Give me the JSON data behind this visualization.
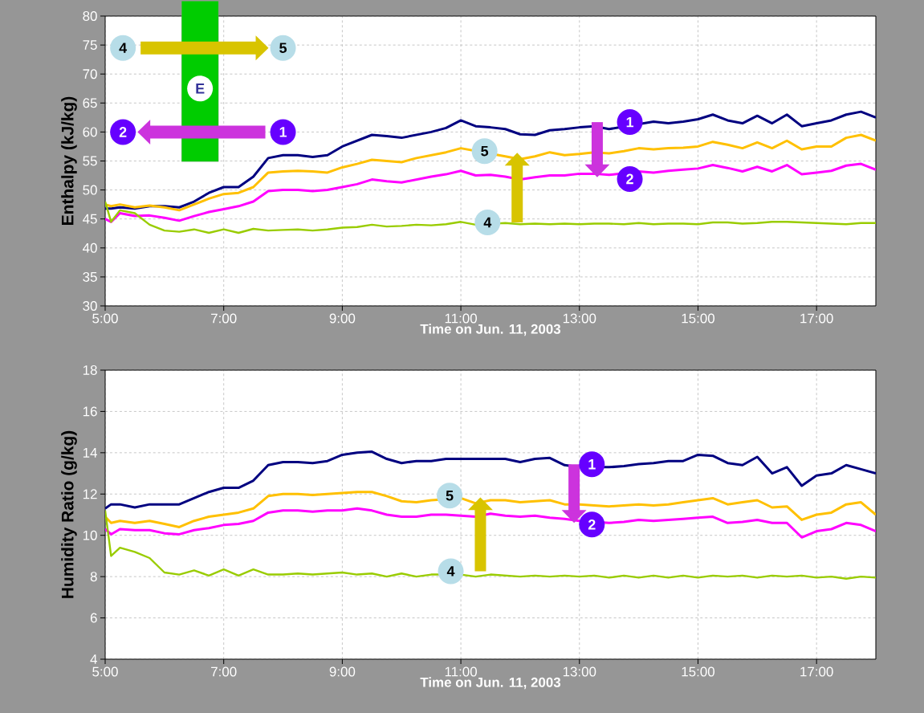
{
  "chart_data": [
    {
      "type": "line",
      "ylabel": "Enthalpy (kJ/kg)",
      "xlabel": "Time on Jun. 11, 2003",
      "x": [
        5,
        5.1,
        5.25,
        5.5,
        5.75,
        6,
        6.25,
        6.5,
        6.75,
        7,
        7.25,
        7.5,
        7.75,
        8,
        8.25,
        8.5,
        8.75,
        9,
        9.25,
        9.5,
        9.75,
        10,
        10.25,
        10.5,
        10.75,
        11,
        11.25,
        11.5,
        11.75,
        12,
        12.25,
        12.5,
        12.75,
        13,
        13.25,
        13.5,
        13.75,
        14,
        14.25,
        14.5,
        14.75,
        15,
        15.25,
        15.5,
        15.75,
        16,
        16.25,
        16.5,
        16.75,
        17,
        17.25,
        17.5,
        17.75,
        18
      ],
      "series": [
        {
          "color": "#000080",
          "values": [
            46.8,
            46.8,
            47,
            46.8,
            47.2,
            47.2,
            47.0,
            48,
            49.5,
            50.5,
            50.5,
            52.3,
            55.5,
            56,
            56,
            55.7,
            56,
            57.5,
            58.5,
            59.5,
            59.3,
            59,
            59.5,
            60,
            60.7,
            62,
            61,
            60.8,
            60.5,
            59.6,
            59.5,
            60.3,
            60.5,
            60.8,
            61,
            60.5,
            null,
            null,
            61.8,
            61.5,
            61.8,
            62.2,
            63,
            62,
            61.5,
            62.8,
            61.5,
            63,
            61,
            61.5,
            62,
            63,
            63.5,
            62.5
          ]
        },
        {
          "color": "#ffc000",
          "values": [
            47.5,
            47.2,
            47.5,
            47,
            47.3,
            47,
            46.5,
            47.5,
            48.5,
            49.3,
            49.5,
            50.5,
            53,
            53.2,
            53.3,
            53.2,
            53,
            53.9,
            54.5,
            55.2,
            55,
            54.8,
            55.5,
            56,
            56.5,
            57.2,
            null,
            null,
            55.8,
            55.3,
            55.8,
            56.5,
            56,
            56.2,
            56.5,
            56.3,
            56.7,
            57.2,
            57,
            57.2,
            57.3,
            57.5,
            58.3,
            57.8,
            57.2,
            58.2,
            57.2,
            58.5,
            57,
            57.5,
            57.5,
            59,
            59.5,
            58.5
          ]
        },
        {
          "color": "#ff00ff",
          "values": [
            45,
            44.5,
            46,
            45.5,
            45.6,
            45.2,
            44.7,
            45.5,
            46.2,
            46.7,
            47.2,
            48,
            49.8,
            50,
            50,
            49.8,
            50,
            50.5,
            51,
            51.8,
            51.5,
            51.3,
            51.8,
            52.3,
            52.7,
            53.3,
            52.5,
            52.6,
            52.3,
            51.8,
            52.2,
            52.5,
            52.5,
            52.8,
            52.8,
            52.6,
            null,
            53.2,
            53,
            53.3,
            53.5,
            53.7,
            54.3,
            53.8,
            53.2,
            54,
            53.2,
            54.3,
            52.7,
            53,
            53.3,
            54.2,
            54.5,
            53.5
          ]
        },
        {
          "color": "#99cc00",
          "values": [
            48,
            44.5,
            46.5,
            46,
            44,
            43,
            42.8,
            43.2,
            42.6,
            43.2,
            42.6,
            43.3,
            43,
            43.1,
            43.2,
            43,
            43.2,
            43.5,
            43.6,
            44,
            43.7,
            43.8,
            44,
            43.9,
            44.1,
            44.5,
            44,
            null,
            44.3,
            44.1,
            44.2,
            44.1,
            44.2,
            44.1,
            44.2,
            44.2,
            44.1,
            44.3,
            44.1,
            44.2,
            44.2,
            44.1,
            44.4,
            44.4,
            44.2,
            44.3,
            44.5,
            44.5,
            44.4,
            44.3,
            44.2,
            44.1,
            44.3,
            44.3
          ]
        }
      ],
      "xlim": [
        5,
        18
      ],
      "xticks": [
        {
          "value": 5,
          "label": "5:00"
        },
        {
          "value": 7,
          "label": "7:00"
        },
        {
          "value": 9,
          "label": "9:00"
        },
        {
          "value": 11,
          "label": "11:00"
        },
        {
          "value": 13,
          "label": "13:00"
        },
        {
          "value": 15,
          "label": "15:00"
        },
        {
          "value": 17,
          "label": "17:00"
        }
      ],
      "ylim": [
        30,
        80
      ],
      "yticks": [
        30,
        35,
        40,
        45,
        50,
        55,
        60,
        65,
        70,
        75,
        80
      ],
      "grid": true,
      "annotations": [
        {
          "text": "4",
          "x": 5.3,
          "y": 74.5
        },
        {
          "text": "5",
          "x": 8.0,
          "y": 74.5
        },
        {
          "text": "E",
          "x": 6.6,
          "y": 67.5
        },
        {
          "text": "2",
          "x": 5.3,
          "y": 60
        },
        {
          "text": "1",
          "x": 8.0,
          "y": 60
        },
        {
          "text": "5",
          "x": 11.4,
          "y": 56.7
        },
        {
          "text": "4",
          "x": 11.45,
          "y": 44.4
        },
        {
          "text": "1",
          "x": 13.85,
          "y": 61.7
        },
        {
          "text": "2",
          "x": 13.85,
          "y": 51.9
        }
      ]
    },
    {
      "type": "line",
      "ylabel": "Humidity Ratio (g/kg)",
      "xlabel": "Time on Jun. 11, 2003",
      "x": [
        5,
        5.1,
        5.25,
        5.5,
        5.75,
        6,
        6.25,
        6.5,
        6.75,
        7,
        7.25,
        7.5,
        7.75,
        8,
        8.25,
        8.5,
        8.75,
        9,
        9.25,
        9.5,
        9.75,
        10,
        10.25,
        10.5,
        10.75,
        11,
        11.25,
        11.5,
        11.75,
        12,
        12.25,
        12.5,
        12.75,
        13,
        13.25,
        13.5,
        13.75,
        14,
        14.25,
        14.5,
        14.75,
        15,
        15.25,
        15.5,
        15.75,
        16,
        16.25,
        16.5,
        16.75,
        17,
        17.25,
        17.5,
        17.75,
        18
      ],
      "series": [
        {
          "color": "#000080",
          "values": [
            11.3,
            11.5,
            11.5,
            11.35,
            11.5,
            11.5,
            11.5,
            11.8,
            12.1,
            12.3,
            12.3,
            12.65,
            13.4,
            13.55,
            13.55,
            13.5,
            13.6,
            13.9,
            14.0,
            14.05,
            13.7,
            13.5,
            13.6,
            13.6,
            13.7,
            13.7,
            13.7,
            13.7,
            13.7,
            13.55,
            13.7,
            13.75,
            13.4,
            13.3,
            null,
            13.3,
            13.35,
            13.45,
            13.5,
            13.6,
            13.6,
            13.9,
            13.85,
            13.5,
            13.4,
            13.8,
            13.0,
            13.3,
            12.4,
            12.9,
            13.0,
            13.4,
            13.2,
            13.0
          ]
        },
        {
          "color": "#ffc000",
          "values": [
            10.9,
            10.6,
            10.7,
            10.6,
            10.7,
            10.55,
            10.4,
            10.7,
            10.9,
            11.0,
            11.1,
            11.3,
            11.9,
            12.0,
            12.0,
            11.95,
            12.0,
            12.05,
            12.1,
            12.1,
            11.9,
            11.65,
            11.6,
            11.7,
            null,
            11.8,
            11.55,
            11.7,
            11.7,
            11.6,
            11.65,
            11.7,
            11.5,
            11.5,
            11.45,
            11.4,
            11.45,
            11.5,
            11.45,
            11.5,
            11.6,
            11.7,
            11.8,
            11.5,
            11.6,
            11.7,
            11.35,
            11.4,
            10.75,
            11.0,
            11.1,
            11.5,
            11.6,
            11.0
          ]
        },
        {
          "color": "#ff00ff",
          "values": [
            10.3,
            10.05,
            10.3,
            10.25,
            10.25,
            10.1,
            10.05,
            10.25,
            10.35,
            10.5,
            10.55,
            10.7,
            11.1,
            11.2,
            11.2,
            11.15,
            11.2,
            11.2,
            11.3,
            11.2,
            11.0,
            10.9,
            10.9,
            11.0,
            11.0,
            10.95,
            10.9,
            11.05,
            10.95,
            10.9,
            10.95,
            10.85,
            10.8,
            10.7,
            null,
            10.6,
            10.65,
            10.75,
            10.7,
            10.75,
            10.8,
            10.85,
            10.9,
            10.6,
            10.65,
            10.75,
            10.6,
            10.6,
            9.9,
            10.2,
            10.3,
            10.6,
            10.5,
            10.2
          ]
        },
        {
          "color": "#99cc00",
          "values": [
            11.2,
            9.0,
            9.4,
            9.2,
            8.9,
            8.2,
            8.1,
            8.3,
            8.05,
            8.35,
            8.05,
            8.35,
            8.1,
            8.1,
            8.15,
            8.1,
            8.15,
            8.2,
            8.1,
            8.15,
            8.0,
            8.15,
            8.0,
            8.1,
            null,
            8.1,
            8.0,
            8.1,
            8.05,
            8.0,
            8.05,
            8.0,
            8.05,
            8.0,
            8.05,
            7.95,
            8.05,
            7.95,
            8.05,
            7.95,
            8.05,
            7.95,
            8.05,
            8.0,
            8.05,
            7.95,
            8.05,
            8.0,
            8.05,
            7.95,
            8.0,
            7.9,
            8.0,
            7.95
          ]
        }
      ],
      "xlim": [
        5,
        18
      ],
      "xticks": [
        {
          "value": 5,
          "label": "5:00"
        },
        {
          "value": 7,
          "label": "7:00"
        },
        {
          "value": 9,
          "label": "9:00"
        },
        {
          "value": 11,
          "label": "11:00"
        },
        {
          "value": 13,
          "label": "13:00"
        },
        {
          "value": 15,
          "label": "15:00"
        },
        {
          "value": 17,
          "label": "17:00"
        }
      ],
      "ylim": [
        4,
        18
      ],
      "yticks": [
        4,
        6,
        8,
        10,
        12,
        14,
        16,
        18
      ],
      "grid": true,
      "annotations": [
        {
          "text": "1",
          "x": 13.21,
          "y": 13.44
        },
        {
          "text": "2",
          "x": 13.21,
          "y": 10.52
        },
        {
          "text": "5",
          "x": 10.81,
          "y": 11.92
        },
        {
          "text": "4",
          "x": 10.83,
          "y": 8.26
        }
      ]
    }
  ]
}
